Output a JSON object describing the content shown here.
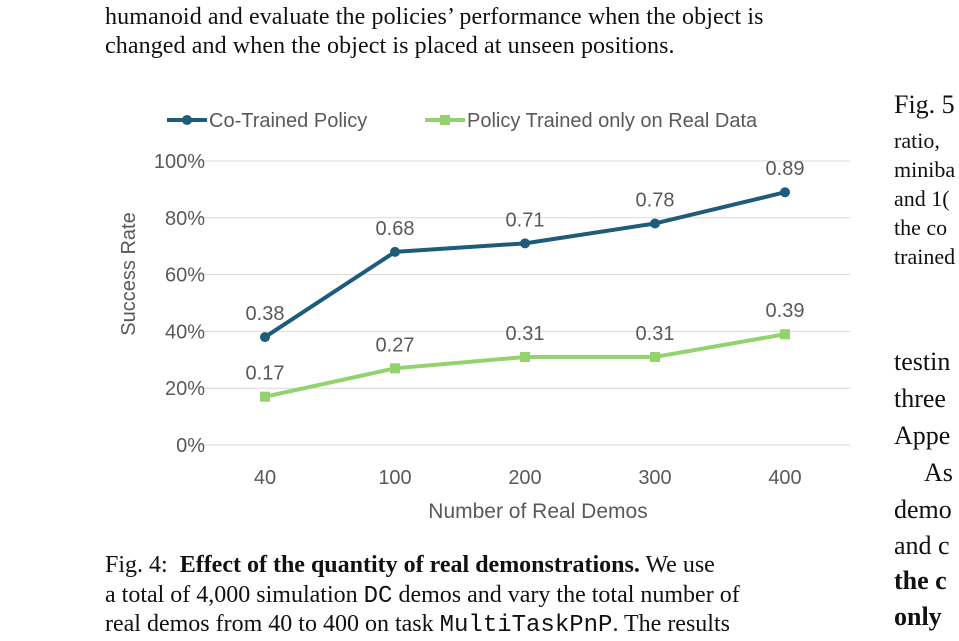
{
  "paragraph_top": {
    "line1": "humanoid and evaluate the policies’ performance when the object is",
    "line2": "changed and when the object is placed at unseen positions."
  },
  "chart_data": {
    "type": "line",
    "categories": [
      "40",
      "100",
      "200",
      "300",
      "400"
    ],
    "xlabel": "Number of Real Demos",
    "ylabel": "Success Rate",
    "ylim": [
      0,
      1.0
    ],
    "yticks": [
      "0%",
      "20%",
      "40%",
      "60%",
      "80%",
      "100%"
    ],
    "grid": true,
    "legend_position": "top",
    "series": [
      {
        "name": "Co-Trained Policy",
        "values": [
          0.38,
          0.68,
          0.71,
          0.78,
          0.89
        ],
        "labels": [
          "0.38",
          "0.68",
          "0.71",
          "0.78",
          "0.89"
        ],
        "color": "#1f5c7a",
        "marker": "circle"
      },
      {
        "name": "Policy Trained only on Real Data",
        "values": [
          0.17,
          0.27,
          0.31,
          0.31,
          0.39
        ],
        "labels": [
          "0.17",
          "0.27",
          "0.31",
          "0.31",
          "0.39"
        ],
        "color": "#92d36e",
        "marker": "square"
      }
    ]
  },
  "caption": {
    "fig_label": "Fig. 4:",
    "bold_title": "Effect of the quantity of real demonstrations.",
    "line1_rest": "We use",
    "line2_a": "a total of 4,000 simulation",
    "line2_code": "DC",
    "line2_b": "demos and vary the total number of",
    "line3_a": "real demos from 40 to 400 on task",
    "line3_code": "MultiTaskPnP",
    "line3_b": ". The results"
  },
  "right_column": {
    "caption_lines": [
      "Fig. 5",
      "ratio,",
      "miniba",
      "and 1(",
      "the co",
      "trained"
    ],
    "body_lines": [
      "testin",
      "three",
      "Appe",
      "As",
      "demo",
      "and c"
    ],
    "bold_lines": [
      "the c",
      "only"
    ]
  }
}
